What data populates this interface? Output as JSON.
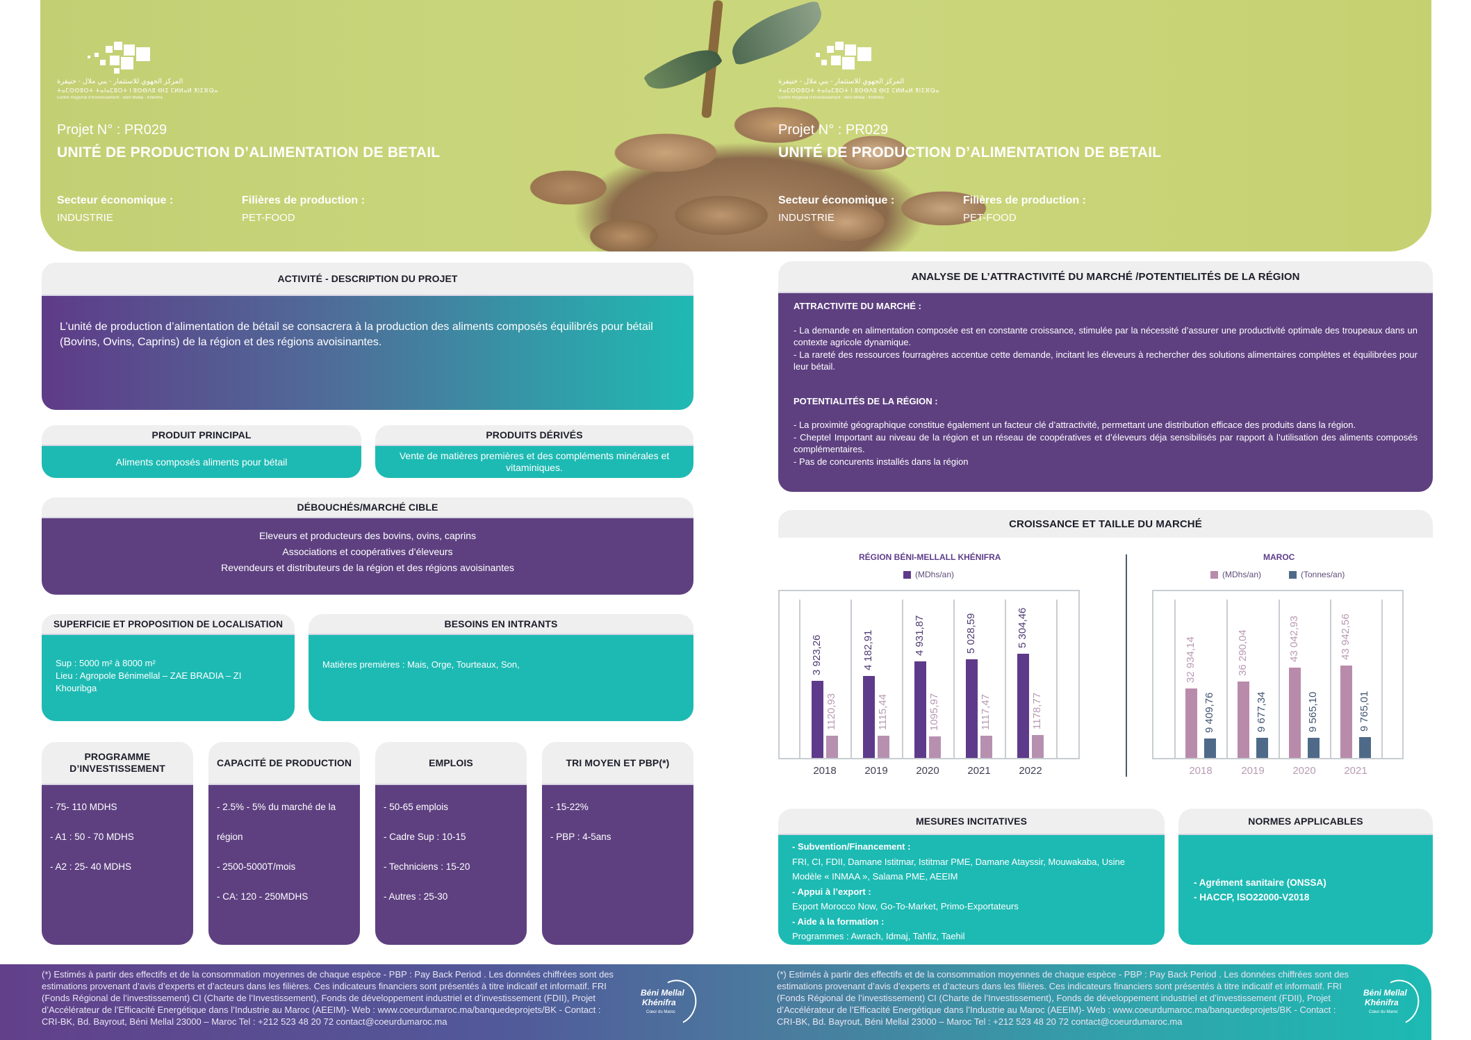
{
  "hero": {
    "left": {
      "logo": {
        "arabic": "المركز الجهوي للاستثمار - بني ملال - خنيفرة",
        "tifinagh": "ⵜⴰⵎⵙⵙⵓⵔⵜ ⵜⴰⵏⴰⵎⵓⵔⵜ ⵏ ⵓⵙⴱⴷⵓ ⴱⵏⵉ ⵎⵍⵍⴰⵍ ⵅⵏⵉⴼⵕⴰ",
        "french": "Centre Régional d'Investissement · Béni Mellal - Khénifra"
      },
      "project_no": "Projet N° :  PR029",
      "title": "UNITÉ DE PRODUCTION D’ALIMENTATION DE BETAIL",
      "sector_label": "Secteur économique :",
      "sector_value": "INDUSTRIE",
      "filiere_label": "Filières de production :",
      "filiere_value": "PET-FOOD"
    },
    "right": {
      "logo": {
        "arabic": "المركز الجهوي للاستثمار - بني ملال - خنيفرة",
        "tifinagh": "ⵜⴰⵎⵙⵙⵓⵔⵜ ⵜⴰⵏⴰⵎⵓⵔⵜ ⵏ ⵓⵙⴱⴷⵓ ⴱⵏⵉ ⵎⵍⵍⴰⵍ ⵅⵏⵉⴼⵕⴰ",
        "french": "Centre Régional d'Investissement · Béni Mellal - Khénifra"
      },
      "project_no": "Projet N° :  PR029",
      "title": "UNITÉ DE PRODUCTION D’ALIMENTATION DE BETAIL",
      "sector_label": "Secteur économique :",
      "sector_value": "INDUSTRIE",
      "filiere_label": "Filières de production :",
      "filiere_value": "PET-FOOD"
    }
  },
  "activite": {
    "title": "ACTIVITÉ - DESCRIPTION DU PROJET",
    "text": "L’unité de production d’alimentation de bétail se consacrera à la production des aliments composés équilibrés pour bétail (Bovins, Ovins, Caprins) de la région et des régions avoisinantes."
  },
  "produit_principal": {
    "title": "PRODUIT PRINCIPAL",
    "text": "Aliments composés aliments pour bétail"
  },
  "produits_derives": {
    "title": "PRODUITS DÉRIVÉS",
    "text": "Vente de matières premières et des compléments minérales et vitaminiques."
  },
  "debouches": {
    "title": "DÉBOUCHÉS/MARCHÉ CIBLE",
    "items": [
      "Eleveurs et producteurs des bovins, ovins, caprins",
      "Associations et coopératives d’éleveurs",
      "Revendeurs et distributeurs de la région et des régions avoisinantes"
    ]
  },
  "superficie": {
    "title": "SUPERFICIE ET PROPOSITION DE LOCALISATION",
    "sup": "Sup : 5000 m² à 8000 m²",
    "lieu": "Lieu : Agropole Bénimellal – ZAE BRADIA – ZI Khouribga"
  },
  "intrants": {
    "title": "BESOINS EN INTRANTS",
    "text": "Matières premières : Mais, Orge, Tourteaux, Son,"
  },
  "kpis": [
    {
      "title": "PROGRAMME D’INVESTISSEMENT",
      "items": [
        "- 75- 110 MDHS",
        "- A1 : 50 - 70 MDHS",
        "- A2 : 25- 40 MDHS"
      ]
    },
    {
      "title": "CAPACITÉ DE PRODUCTION",
      "items": [
        "- 2.5% - 5% du marché de la",
        "région",
        "- 2500-5000T/mois",
        "- CA: 120 - 250MDHS"
      ]
    },
    {
      "title": "EMPLOIS",
      "items": [
        "- 50-65 emplois",
        "- Cadre Sup : 10-15",
        "- Techniciens : 15-20",
        "- Autres : 25-30"
      ]
    },
    {
      "title": "TRI MOYEN ET PBP(*)",
      "items": [
        "- 15-22%",
        "- PBP : 4-5ans"
      ]
    }
  ],
  "analyse": {
    "title": "ANALYSE DE L’ATTRACTIVITÉ DU MARCHÉ /POTENTIELITÉS DE LA RÉGION",
    "attractivite_title": "ATTRACTIVITE DU MARCHÉ :",
    "attractivite_items": [
      "- La demande en alimentation composée est en constante croissance, stimulée par la nécessité d’assurer une productivité optimale des troupeaux dans un contexte agricole dynamique.",
      "- La rareté des ressources fourragères accentue cette demande, incitant les éleveurs à rechercher des solutions alimentaires complètes et équilibrées pour leur bétail."
    ],
    "potentialites_title": "POTENTIALITÉS DE LA RÉGION :",
    "potentialites_items": [
      "- La proximité géographique constitue également un facteur clé d’attractivité, permettant une distribution efficace des produits dans la région.",
      "- Cheptel Important au niveau de la région et un réseau de coopératives et d’éleveurs déja sensibilisés par rapport à l’utilisation des aliments composés  complémentaires.",
      "- Pas de concurents installés dans la région"
    ]
  },
  "croissance": {
    "title": "CROISSANCE ET TAILLE DU MARCHÉ"
  },
  "chart_data": [
    {
      "type": "bar",
      "title": "RÉGION BÉNI-MELLALL KHÉNIFRA",
      "categories": [
        "2018",
        "2019",
        "2020",
        "2021",
        "2022"
      ],
      "series": [
        {
          "name": "(MDhs/an)",
          "values": [
            3923.26,
            4182.91,
            4931.87,
            5028.59,
            5304.46
          ],
          "labels": [
            "3 923,26",
            "4 182,91",
            "4 931,87",
            "5 028,59",
            "5 304,46"
          ],
          "color": "#5e3a8a",
          "label_color": "#4f3a72"
        },
        {
          "name": "",
          "values": [
            1120.93,
            1115.44,
            1095.97,
            1117.47,
            1178.77
          ],
          "labels": [
            "1120,93",
            "1115,44",
            "1095,97",
            "1117,47",
            "1178,77"
          ],
          "color": "#b790b0",
          "label_color": "#b79ab3"
        }
      ],
      "legend": [
        "(MDhs/an)"
      ],
      "legend_position": "top",
      "grid": true,
      "xlabel": "",
      "ylabel": ""
    },
    {
      "type": "bar",
      "title": "MAROC",
      "categories": [
        "2018",
        "2019",
        "2020",
        "2021"
      ],
      "series": [
        {
          "name": "(MDhs/an)",
          "values": [
            32934.14,
            36290.04,
            43042.93,
            43942.56
          ],
          "labels": [
            "32 934,14",
            "36 290,04",
            "43 042,93",
            "43 942,56"
          ],
          "color": "#b98bab",
          "label_color": "#b89ab3"
        },
        {
          "name": "(Tonnes/an)",
          "values": [
            9409.76,
            9677.34,
            9565.1,
            9765.01
          ],
          "labels": [
            "9 409,76",
            "9 677,34",
            "9 565,10",
            "9 765,01"
          ],
          "color": "#4e6a88",
          "label_color": "#3f5570"
        }
      ],
      "legend": [
        "(MDhs/an)",
        "(Tonnes/an)"
      ],
      "legend_position": "top",
      "grid": true,
      "xlabel": "",
      "ylabel": ""
    }
  ],
  "mesures": {
    "title": "MESURES INCITATIVES",
    "sub1": "- Subvention/Financement :",
    "text1": "FRI, CI, FDII, Damane Istitmar, Istitmar PME, Damane Atayssir, Mouwakaba, Usine Modèle « INMAA », Salama PME, AEEIM",
    "sub2": "- Appui à l’export  :",
    "text2": "Export Morocco Now, Go-To-Market, Primo-Exportateurs",
    "sub3": "- Aide à la formation :",
    "text3": "Programmes :  Awrach, Idmaj, Tahfiz, Taehil"
  },
  "normes": {
    "title": "NORMES APPLICABLES",
    "items": [
      "- Agrément sanitaire (ONSSA)",
      "- HACCP, ISO22000-V2018"
    ]
  },
  "footer": {
    "text": "(*) Estimés à partir des effectifs et de la consommation moyennes de chaque espèce - PBP : Pay Back Period . Les données chiffrées sont des estimations provenant d’avis d’experts et d’acteurs dans les filières. Ces indicateurs financiers sont présentés à titre indicatif et informatif. FRI (Fonds Régional de l’investissement) CI (Charte de l’Investissement), Fonds de développement industriel et d’investissement (FDII), Projet d’Accélérateur de l’Efficacité Energétique dans l’Industrie au Maroc (AEEIM)- Web : www.coeurdumaroc.ma/banquedeprojets/BK - Contact : CRI-BK, Bd. Bayrout, Béni Mellal 23000 – Maroc Tel : +212 523 48 20 72 contact@coeurdumaroc.ma",
    "logo_line1": "Béni Mellal",
    "logo_line2": "Khénifra",
    "logo_line3": "Cœur du Maroc"
  },
  "colors": {
    "purple": "#5e4080",
    "teal": "#1dbab3",
    "header_gray": "#efefef",
    "hero_green": "#c8d477"
  }
}
